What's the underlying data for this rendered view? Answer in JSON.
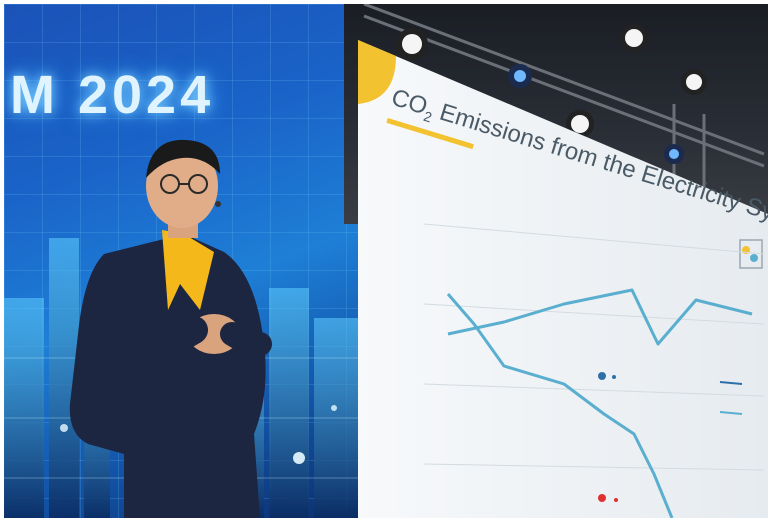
{
  "banner": {
    "title": "M 2024"
  },
  "slide": {
    "title_co": "CO",
    "title_sub": "2",
    "title_rest": " Emissions from the Electricity System",
    "accent_color": "#f2c230",
    "line_color": "#5aaed0"
  },
  "presenter": {
    "shirt_color": "#f4b81a",
    "suit_color": "#1c2640"
  }
}
